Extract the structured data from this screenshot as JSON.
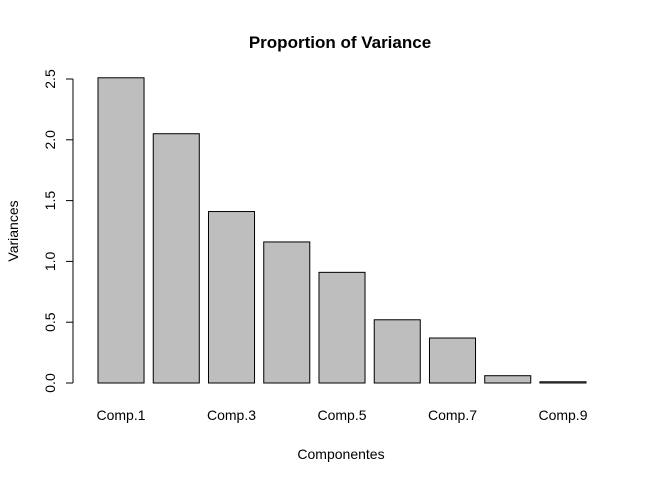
{
  "chart_data": {
    "type": "bar",
    "title": "Proportion of Variance",
    "xlabel": "Componentes",
    "ylabel": "Variances",
    "categories": [
      "Comp.1",
      "Comp.2",
      "Comp.3",
      "Comp.4",
      "Comp.5",
      "Comp.6",
      "Comp.7",
      "Comp.8",
      "Comp.9"
    ],
    "x_tick_labels": [
      "Comp.1",
      "",
      "Comp.3",
      "",
      "Comp.5",
      "",
      "Comp.7",
      "",
      "Comp.9"
    ],
    "values": [
      2.51,
      2.05,
      1.41,
      1.16,
      0.91,
      0.52,
      0.37,
      0.06,
      0.01
    ],
    "ylim": [
      0,
      2.5
    ],
    "yticks": [
      0.0,
      0.5,
      1.0,
      1.5,
      2.0,
      2.5
    ],
    "ytick_labels": [
      "0.0",
      "0.5",
      "1.0",
      "1.5",
      "2.0",
      "2.5"
    ],
    "grid": false,
    "legend": "none",
    "bar_color": "#bebebe",
    "bar_border_color": "#000000"
  }
}
